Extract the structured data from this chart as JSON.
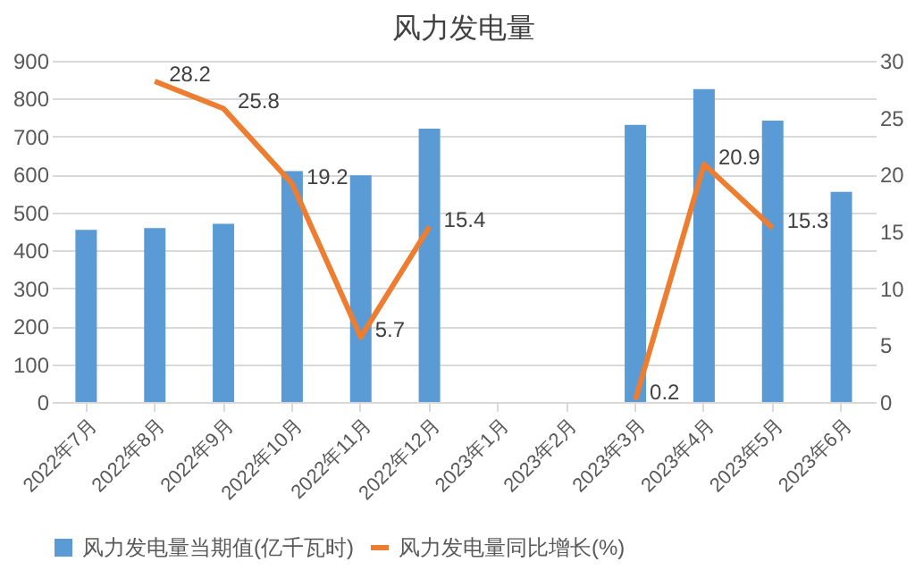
{
  "chart_data": {
    "type": "bar",
    "title": "风力发电量",
    "categories": [
      "2022年7月",
      "2022年8月",
      "2022年9月",
      "2022年10月",
      "2022年11月",
      "2022年12月",
      "2023年1月",
      "2023年2月",
      "2023年3月",
      "2023年4月",
      "2023年5月",
      "2023年6月"
    ],
    "series": [
      {
        "name": "风力发电量当期值(亿千瓦时)",
        "color": "#5b9bd5",
        "values": [
          454,
          459,
          470,
          609,
          598,
          721,
          null,
          null,
          731,
          825,
          742,
          554
        ]
      },
      {
        "name": "风力发电量同比增长(%)",
        "type": "line",
        "axis": "y2",
        "color": "#ed7d31",
        "values": [
          null,
          28.2,
          25.8,
          19.2,
          5.7,
          15.4,
          null,
          null,
          0.2,
          20.9,
          15.3,
          null
        ],
        "data_labels": true
      }
    ],
    "ylim": [
      0,
      900
    ],
    "yticks": [
      0,
      100,
      200,
      300,
      400,
      500,
      600,
      700,
      800,
      900
    ],
    "y2lim": [
      0,
      30
    ],
    "y2ticks": [
      0,
      5,
      10,
      15,
      20,
      25,
      30
    ],
    "grid": "y",
    "legend": "bottom"
  }
}
